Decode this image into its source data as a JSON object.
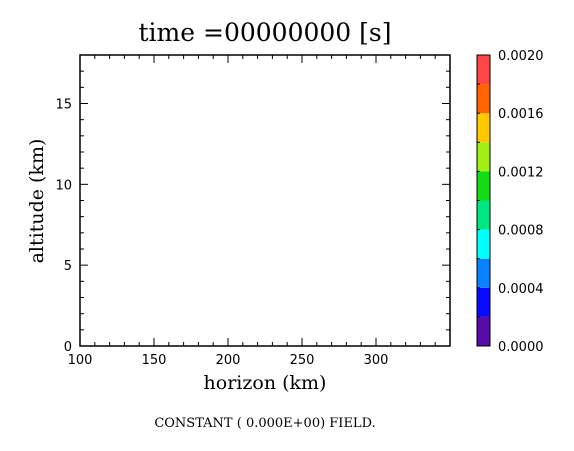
{
  "chart_data": {
    "type": "heatmap",
    "title": "time =00000000 [s]",
    "xlabel": "horizon (km)",
    "ylabel": "altitude (km)",
    "xlim": [
      100,
      350
    ],
    "ylim": [
      0,
      18
    ],
    "x_ticks": [
      100,
      150,
      200,
      250,
      300
    ],
    "y_ticks": [
      0,
      5,
      10,
      15
    ],
    "x_tick_labels": [
      "100",
      "150",
      "200",
      "250",
      "300"
    ],
    "y_tick_labels": [
      "0",
      "5",
      "10",
      "15"
    ],
    "field_value": 0.0,
    "caption": "CONSTANT ( 0.000E+00) FIELD.",
    "colorbar": {
      "min": 0.0,
      "max": 0.002,
      "levels": [
        0.0,
        0.0002,
        0.0004,
        0.0006,
        0.0008,
        0.001,
        0.0012,
        0.0014,
        0.0016,
        0.0018,
        0.002
      ],
      "colors": [
        "#5a0aa8",
        "#0a0aff",
        "#0a82ff",
        "#00ffff",
        "#00e682",
        "#14dc14",
        "#a0f014",
        "#ffc800",
        "#ff6400",
        "#ff4646"
      ],
      "tick_values": [
        0.0,
        0.0004,
        0.0008,
        0.0012,
        0.0016,
        0.002
      ],
      "tick_labels": [
        "0.0000",
        "0.0004",
        "0.0008",
        "0.0012",
        "0.0016",
        "0.0020"
      ]
    }
  }
}
